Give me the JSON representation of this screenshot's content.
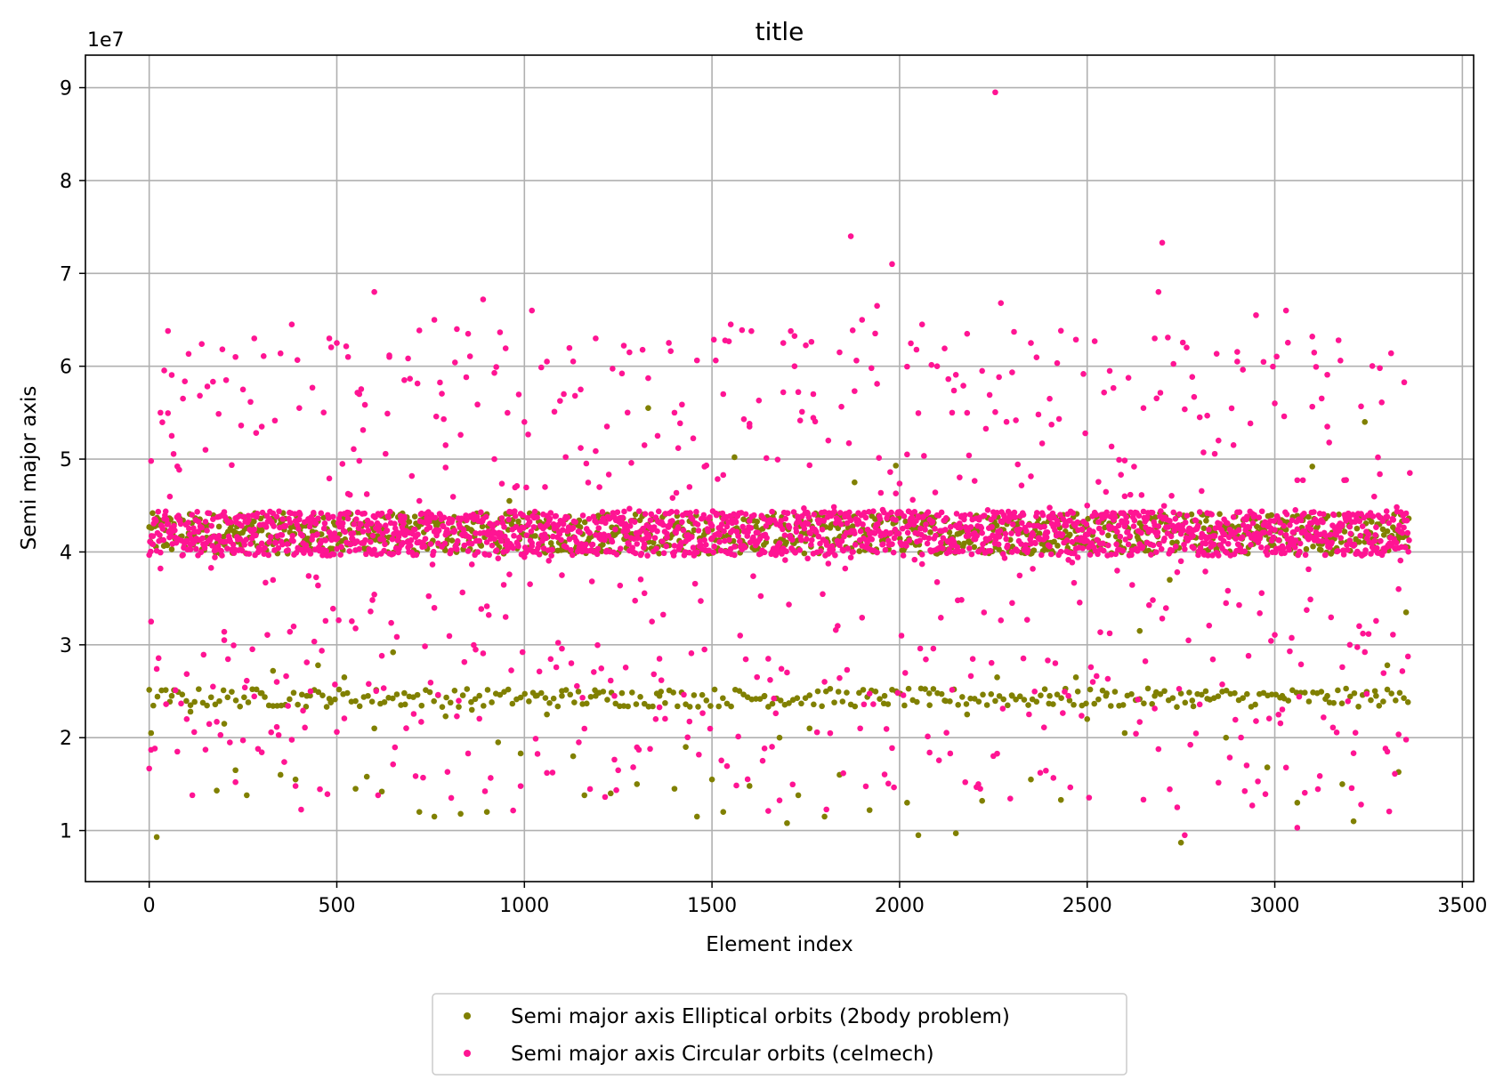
{
  "chart_data": {
    "type": "scatter",
    "title": "title",
    "xlabel": "Element index",
    "ylabel": "Semi major axis",
    "y_offset_text": "1e7",
    "xlim": [
      -170,
      3530
    ],
    "ylim": [
      4.5,
      93.5
    ],
    "y_scale_factor": 10000000,
    "xticks": [
      0,
      500,
      1000,
      1500,
      2000,
      2500,
      3000,
      3500
    ],
    "xtick_labels": [
      "0",
      "500",
      "1000",
      "1500",
      "2000",
      "2500",
      "3000",
      "3500"
    ],
    "yticks": [
      10,
      20,
      30,
      40,
      50,
      60,
      70,
      80,
      90
    ],
    "ytick_labels": [
      "1",
      "2",
      "3",
      "4",
      "5",
      "6",
      "7",
      "8",
      "9"
    ],
    "grid": true,
    "legend_position": "below-center",
    "n_elements": 3360,
    "series": [
      {
        "name": "Semi major axis Elliptical orbits (2body problem)",
        "color": "#808000",
        "marker": "circle",
        "band_center": 42.0,
        "band_halfwidth": 2.2,
        "points": [
          [
            20,
            9.3
          ],
          [
            5,
            20.5
          ],
          [
            60,
            24.5
          ],
          [
            110,
            22.8
          ],
          [
            180,
            14.3
          ],
          [
            200,
            21.5
          ],
          [
            230,
            16.5
          ],
          [
            260,
            13.8
          ],
          [
            300,
            24.8
          ],
          [
            330,
            27.2
          ],
          [
            350,
            16.0
          ],
          [
            390,
            15.5
          ],
          [
            420,
            24.5
          ],
          [
            450,
            27.8
          ],
          [
            480,
            24.2
          ],
          [
            520,
            26.5
          ],
          [
            550,
            14.5
          ],
          [
            580,
            15.8
          ],
          [
            600,
            21.0
          ],
          [
            620,
            14.2
          ],
          [
            650,
            29.2
          ],
          [
            680,
            24.8
          ],
          [
            720,
            12.0
          ],
          [
            760,
            11.5
          ],
          [
            790,
            22.3
          ],
          [
            830,
            11.8
          ],
          [
            860,
            23.0
          ],
          [
            900,
            12.0
          ],
          [
            930,
            19.5
          ],
          [
            960,
            45.5
          ],
          [
            990,
            18.3
          ],
          [
            1030,
            24.5
          ],
          [
            1060,
            22.5
          ],
          [
            1100,
            24.5
          ],
          [
            1130,
            18.0
          ],
          [
            1160,
            13.8
          ],
          [
            1190,
            24.5
          ],
          [
            1230,
            14.0
          ],
          [
            1260,
            24.8
          ],
          [
            1300,
            15.0
          ],
          [
            1330,
            55.5
          ],
          [
            1360,
            24.5
          ],
          [
            1400,
            14.5
          ],
          [
            1430,
            19.0
          ],
          [
            1460,
            11.5
          ],
          [
            1500,
            15.5
          ],
          [
            1530,
            12.0
          ],
          [
            1560,
            50.2
          ],
          [
            1600,
            14.8
          ],
          [
            1640,
            24.5
          ],
          [
            1680,
            20.0
          ],
          [
            1700,
            10.8
          ],
          [
            1730,
            13.8
          ],
          [
            1760,
            21.0
          ],
          [
            1800,
            11.5
          ],
          [
            1840,
            16.0
          ],
          [
            1880,
            47.5
          ],
          [
            1920,
            12.2
          ],
          [
            1960,
            24.5
          ],
          [
            1990,
            49.3
          ],
          [
            2020,
            13.0
          ],
          [
            2050,
            9.5
          ],
          [
            2080,
            23.5
          ],
          [
            2120,
            24.0
          ],
          [
            2150,
            9.7
          ],
          [
            2180,
            22.5
          ],
          [
            2220,
            13.2
          ],
          [
            2260,
            26.5
          ],
          [
            2300,
            24.5
          ],
          [
            2350,
            15.5
          ],
          [
            2400,
            24.5
          ],
          [
            2430,
            13.3
          ],
          [
            2470,
            26.5
          ],
          [
            2500,
            22.0
          ],
          [
            2550,
            24.5
          ],
          [
            2600,
            20.5
          ],
          [
            2640,
            31.5
          ],
          [
            2680,
            24.5
          ],
          [
            2720,
            37.0
          ],
          [
            2750,
            8.7
          ],
          [
            2780,
            24.0
          ],
          [
            2820,
            24.2
          ],
          [
            2870,
            20.0
          ],
          [
            2930,
            40.5
          ],
          [
            2980,
            16.8
          ],
          [
            3020,
            24.5
          ],
          [
            3060,
            13.0
          ],
          [
            3100,
            49.2
          ],
          [
            3140,
            24.5
          ],
          [
            3180,
            15.0
          ],
          [
            3210,
            11.0
          ],
          [
            3240,
            54.0
          ],
          [
            3270,
            24.5
          ],
          [
            3300,
            27.8
          ],
          [
            3330,
            16.3
          ],
          [
            3350,
            33.5
          ]
        ]
      },
      {
        "name": "Semi major axis Circular orbits (celmech)",
        "color": "#ff1493",
        "marker": "circle",
        "band_center": 42.0,
        "band_halfwidth": 2.4,
        "points": [
          [
            5,
            49.8
          ],
          [
            5,
            32.5
          ],
          [
            30,
            55.0
          ],
          [
            50,
            63.8
          ],
          [
            60,
            52.5
          ],
          [
            75,
            18.5
          ],
          [
            100,
            22.0
          ],
          [
            150,
            51.0
          ],
          [
            170,
            25.5
          ],
          [
            200,
            30.5
          ],
          [
            230,
            61.0
          ],
          [
            250,
            57.5
          ],
          [
            280,
            63.0
          ],
          [
            300,
            53.5
          ],
          [
            340,
            26.0
          ],
          [
            380,
            64.5
          ],
          [
            400,
            55.5
          ],
          [
            430,
            25.0
          ],
          [
            480,
            63.0
          ],
          [
            500,
            62.5
          ],
          [
            530,
            61.0
          ],
          [
            560,
            57.0
          ],
          [
            600,
            68.0
          ],
          [
            640,
            61.0
          ],
          [
            680,
            58.5
          ],
          [
            720,
            45.5
          ],
          [
            760,
            65.0
          ],
          [
            790,
            51.5
          ],
          [
            820,
            64.0
          ],
          [
            850,
            63.5
          ],
          [
            890,
            67.2
          ],
          [
            920,
            50.0
          ],
          [
            950,
            33.0
          ],
          [
            1000,
            54.0
          ],
          [
            1020,
            66.0
          ],
          [
            1060,
            60.5
          ],
          [
            1100,
            37.5
          ],
          [
            1150,
            57.5
          ],
          [
            1190,
            63.0
          ],
          [
            1240,
            24.5
          ],
          [
            1280,
            61.5
          ],
          [
            1320,
            51.5
          ],
          [
            1360,
            28.5
          ],
          [
            1400,
            55.0
          ],
          [
            1440,
            47.0
          ],
          [
            1480,
            29.5
          ],
          [
            1530,
            57.0
          ],
          [
            1550,
            64.5
          ],
          [
            1600,
            53.5
          ],
          [
            1650,
            28.5
          ],
          [
            1690,
            62.5
          ],
          [
            1720,
            60.0
          ],
          [
            1770,
            57.0
          ],
          [
            1810,
            52.0
          ],
          [
            1840,
            61.5
          ],
          [
            1870,
            74.0
          ],
          [
            1900,
            65.0
          ],
          [
            1940,
            66.5
          ],
          [
            1980,
            71.0
          ],
          [
            2020,
            50.5
          ],
          [
            2060,
            64.5
          ],
          [
            2100,
            60.0
          ],
          [
            2140,
            55.0
          ],
          [
            2180,
            63.5
          ],
          [
            2220,
            59.5
          ],
          [
            2255,
            89.5
          ],
          [
            2270,
            66.8
          ],
          [
            2300,
            34.5
          ],
          [
            2350,
            62.5
          ],
          [
            2400,
            56.5
          ],
          [
            2450,
            24.5
          ],
          [
            2500,
            45.0
          ],
          [
            2560,
            59.5
          ],
          [
            2600,
            46.0
          ],
          [
            2650,
            55.5
          ],
          [
            2680,
            63.0
          ],
          [
            2700,
            73.3
          ],
          [
            2690,
            68.0
          ],
          [
            2740,
            12.5
          ],
          [
            2760,
            9.5
          ],
          [
            2800,
            54.5
          ],
          [
            2850,
            52.0
          ],
          [
            2900,
            60.5
          ],
          [
            2950,
            65.5
          ],
          [
            3000,
            56.0
          ],
          [
            3030,
            66.0
          ],
          [
            3060,
            10.3
          ],
          [
            3100,
            63.2
          ],
          [
            3140,
            53.5
          ],
          [
            3200,
            30.0
          ],
          [
            3230,
            12.8
          ],
          [
            3280,
            59.8
          ],
          [
            3300,
            18.5
          ],
          [
            3330,
            36.0
          ],
          [
            3360,
            48.5
          ]
        ]
      }
    ]
  }
}
